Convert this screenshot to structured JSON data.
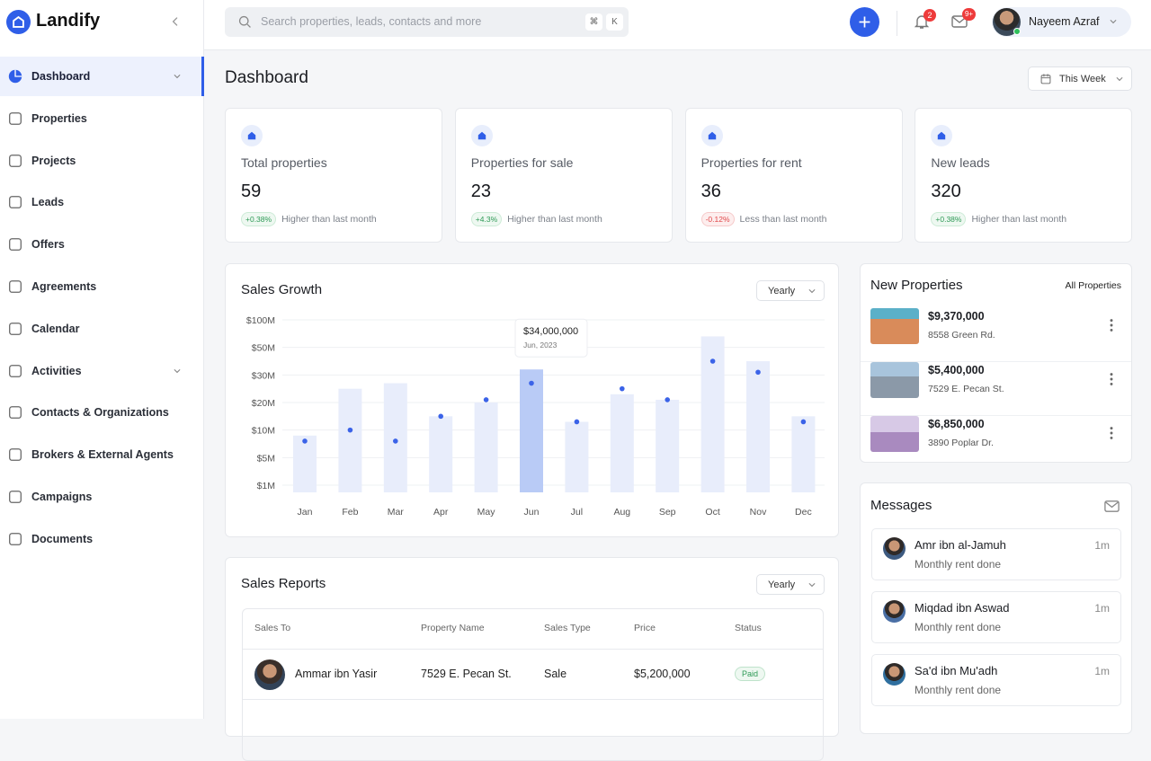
{
  "sidebar": {
    "brand": "Landify",
    "nav": [
      "Dashboard",
      "Properties",
      "Projects",
      "Leads",
      "Offers",
      "Agreements",
      "Calendar",
      "Activities",
      "Contacts & Organizations",
      "Brokers & External Agents",
      "Campaigns",
      "Documents"
    ]
  },
  "topbar": {
    "search_placeholder": "Search properties, leads, contacts and more",
    "shortcut_keys": [
      "⌘",
      "K"
    ],
    "notification_count": 2,
    "message_count": "9+",
    "user_name": "Nayeem Azraf"
  },
  "header": {
    "title": "Dashboard",
    "period": "This Week"
  },
  "stats": [
    {
      "label": "Total properties",
      "value": 59,
      "change": "+0.38%",
      "note": "Higher than last month"
    },
    {
      "label": "Properties for sale",
      "value": 23,
      "change": "+4.3%",
      "note": "Higher than last month"
    },
    {
      "label": "Properties for rent",
      "value": 36,
      "change": "-0.12%",
      "note": "Less than last month"
    },
    {
      "label": "New leads",
      "value": 320,
      "change": "+0.38%",
      "note": "Higher than last month"
    }
  ],
  "chart_data": {
    "type": "bar",
    "title": "Sales Growth",
    "filter": "Yearly",
    "categories": [
      "Jan",
      "Feb",
      "Mar",
      "Apr",
      "May",
      "Jun",
      "Jul",
      "Aug",
      "Sep",
      "Oct",
      "Nov",
      "Dec"
    ],
    "yscale": "even-ticks",
    "ylim": [
      0,
      100
    ],
    "yticks": [
      {
        "value": 1,
        "label": "$1M"
      },
      {
        "value": 5,
        "label": "$5M"
      },
      {
        "value": 10,
        "label": "$10M"
      },
      {
        "value": 20,
        "label": "$20M"
      },
      {
        "value": 30,
        "label": "$30M"
      },
      {
        "value": 50,
        "label": "$50M"
      },
      {
        "value": 100,
        "label": "$100M"
      }
    ],
    "grid": true,
    "series": [
      {
        "type": "bar",
        "color": "#e8edfb",
        "highlight_color": "#b9cbf6",
        "values": [
          9,
          25,
          27,
          15,
          20,
          34,
          13,
          23,
          21,
          70,
          40,
          15
        ],
        "value_labels": [
          null,
          null,
          null,
          null,
          null,
          "$34,000,000",
          null,
          null,
          null,
          null,
          null,
          null
        ],
        "tooltip_dates": [
          null,
          null,
          null,
          null,
          null,
          "Jun, 2023",
          null,
          null,
          null,
          null,
          null,
          null
        ]
      },
      {
        "type": "line",
        "color": "#3b63e8",
        "values": [
          8,
          10,
          8,
          15,
          21,
          27,
          13,
          25,
          21,
          40,
          32,
          13
        ]
      }
    ]
  },
  "new_properties": {
    "title": "New Properties",
    "link": "All Properties",
    "items": [
      {
        "price": "$9,370,000",
        "address": "8558 Green Rd."
      },
      {
        "price": "$5,400,000",
        "address": "7529 E. Pecan St."
      },
      {
        "price": "$6,850,000",
        "address": "3890 Poplar Dr."
      }
    ]
  },
  "messages": {
    "title": "Messages",
    "items": [
      {
        "name": "Amr ibn al-Jamuh",
        "text": "Monthly rent done",
        "time": "1m"
      },
      {
        "name": "Miqdad ibn Aswad",
        "text": "Monthly rent done",
        "time": "1m"
      },
      {
        "name": "Sa'd ibn Mu'adh",
        "text": "Monthly rent done",
        "time": "1m"
      }
    ]
  },
  "sales_reports": {
    "title": "Sales Reports",
    "filter": "Yearly",
    "columns": [
      "Sales To",
      "Property Name",
      "Sales Type",
      "Price",
      "Status"
    ],
    "rows": [
      [
        "Ammar ibn Yasir",
        "7529 E. Pecan St.",
        "Sale",
        "$5,200,000",
        "Paid"
      ]
    ]
  }
}
